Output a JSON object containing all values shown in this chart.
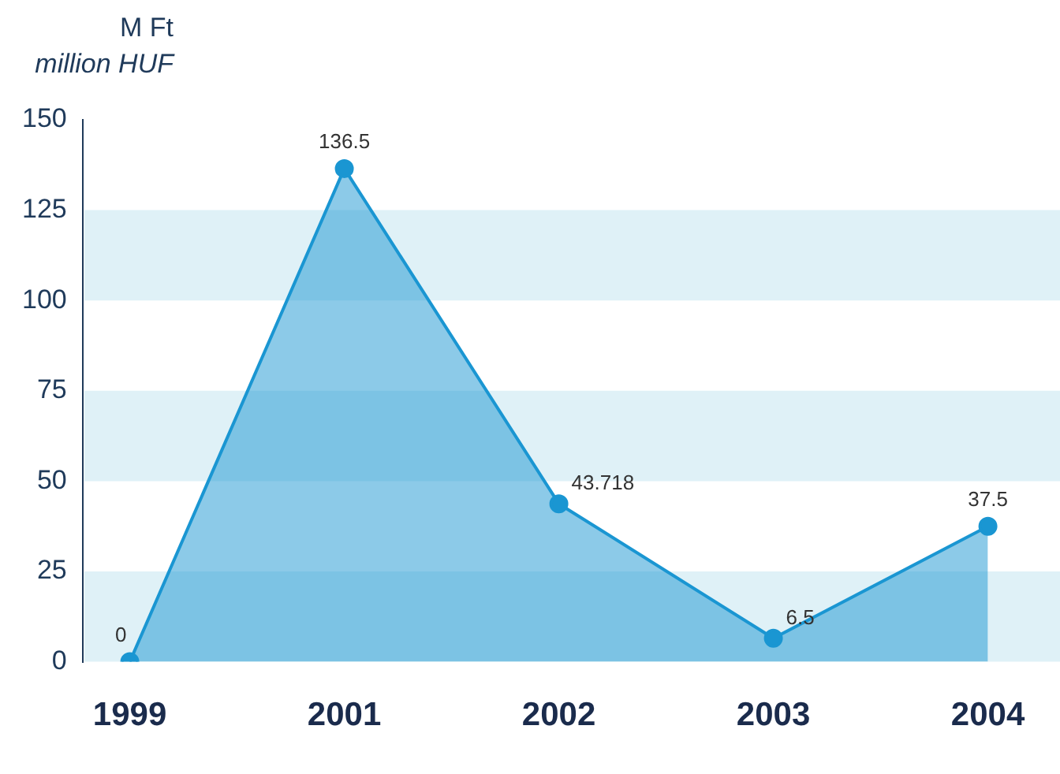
{
  "chart_data": {
    "type": "area",
    "ylabel": "M Ft\nmillion HUF",
    "categories": [
      "1999",
      "2001",
      "2002",
      "2003",
      "2004"
    ],
    "values": [
      0,
      136.5,
      43.718,
      6.5,
      37.5
    ],
    "color": "#1a96d2",
    "ylim": [
      0,
      150
    ],
    "yticks": [
      0,
      25,
      50,
      75,
      100,
      125,
      150
    ],
    "grid": false,
    "legend": false,
    "marker": "circle",
    "data_labels": true,
    "bands": [
      {
        "axis": "y",
        "from": 0,
        "to": 25,
        "color": "#dff1f7"
      },
      {
        "axis": "y",
        "from": 50,
        "to": 75,
        "color": "#dff1f7"
      },
      {
        "axis": "y",
        "from": 100,
        "to": 125,
        "color": "#dff1f7"
      }
    ]
  }
}
